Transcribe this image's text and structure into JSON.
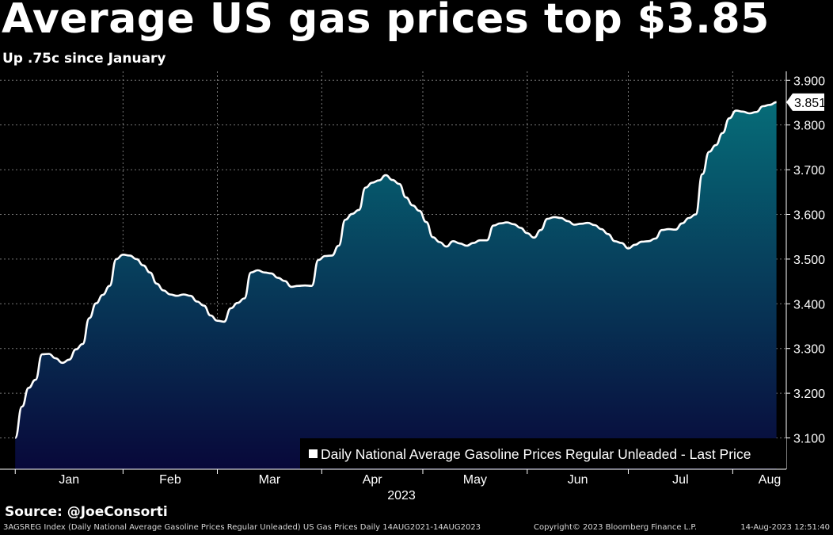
{
  "header": {
    "title": "Average US gas prices top $3.85",
    "subtitle": "Up .75c since January"
  },
  "source_label": "Source: @JoeConsorti",
  "footer": {
    "left": "3AGSREG Index (Daily National Average Gasoline Prices Regular Unleaded) US Gas Prices  Daily 14AUG2021-14AUG2023",
    "center": "Copyright© 2023 Bloomberg Finance L.P.",
    "right": "14-Aug-2023 12:51:40"
  },
  "colors": {
    "background": "#000000",
    "line": "#ffffff",
    "fill_top": "#066c78",
    "fill_bottom": "#08083a",
    "grid": "#777777"
  },
  "chart_data": {
    "type": "area",
    "legend": "Daily National Average Gasoline Prices Regular Unleaded - Last Price",
    "legend_position": "bottom-right",
    "year_label": "2023",
    "month_labels": [
      "Jan",
      "Feb",
      "Mar",
      "Apr",
      "May",
      "Jun",
      "Jul",
      "Aug"
    ],
    "y_ticks": [
      "3.100",
      "3.200",
      "3.300",
      "3.400",
      "3.500",
      "3.600",
      "3.700",
      "3.800",
      "3.900"
    ],
    "ylim": [
      3.03,
      3.92
    ],
    "grid": true,
    "last_price_label": "3.851",
    "last_value": 3.851,
    "x": [
      "2022-12-31",
      "2023-01-02",
      "2023-01-04",
      "2023-01-06",
      "2023-01-08",
      "2023-01-10",
      "2023-01-12",
      "2023-01-14",
      "2023-01-16",
      "2023-01-18",
      "2023-01-20",
      "2023-01-22",
      "2023-01-24",
      "2023-01-26",
      "2023-01-28",
      "2023-01-30",
      "2023-02-01",
      "2023-02-03",
      "2023-02-05",
      "2023-02-07",
      "2023-02-09",
      "2023-02-11",
      "2023-02-13",
      "2023-02-15",
      "2023-02-17",
      "2023-02-19",
      "2023-02-21",
      "2023-02-23",
      "2023-02-25",
      "2023-02-27",
      "2023-03-01",
      "2023-03-03",
      "2023-03-05",
      "2023-03-07",
      "2023-03-09",
      "2023-03-11",
      "2023-03-13",
      "2023-03-15",
      "2023-03-17",
      "2023-03-19",
      "2023-03-21",
      "2023-03-23",
      "2023-03-25",
      "2023-03-27",
      "2023-03-29",
      "2023-03-31",
      "2023-04-02",
      "2023-04-04",
      "2023-04-06",
      "2023-04-08",
      "2023-04-10",
      "2023-04-12",
      "2023-04-14",
      "2023-04-16",
      "2023-04-18",
      "2023-04-20",
      "2023-04-22",
      "2023-04-24",
      "2023-04-26",
      "2023-04-28",
      "2023-04-30",
      "2023-05-02",
      "2023-05-04",
      "2023-05-06",
      "2023-05-08",
      "2023-05-10",
      "2023-05-12",
      "2023-05-14",
      "2023-05-16",
      "2023-05-18",
      "2023-05-20",
      "2023-05-22",
      "2023-05-24",
      "2023-05-26",
      "2023-05-28",
      "2023-05-30",
      "2023-06-01",
      "2023-06-03",
      "2023-06-05",
      "2023-06-07",
      "2023-06-09",
      "2023-06-11",
      "2023-06-13",
      "2023-06-15",
      "2023-06-17",
      "2023-06-19",
      "2023-06-21",
      "2023-06-23",
      "2023-06-25",
      "2023-06-27",
      "2023-06-29",
      "2023-07-01",
      "2023-07-03",
      "2023-07-05",
      "2023-07-07",
      "2023-07-09",
      "2023-07-11",
      "2023-07-13",
      "2023-07-15",
      "2023-07-17",
      "2023-07-19",
      "2023-07-21",
      "2023-07-23",
      "2023-07-25",
      "2023-07-27",
      "2023-07-29",
      "2023-07-31",
      "2023-08-02",
      "2023-08-04",
      "2023-08-06",
      "2023-08-08",
      "2023-08-10",
      "2023-08-12",
      "2023-08-14"
    ],
    "values": [
      3.1,
      3.17,
      3.212,
      3.23,
      3.287,
      3.288,
      3.278,
      3.268,
      3.275,
      3.298,
      3.31,
      3.368,
      3.401,
      3.42,
      3.44,
      3.5,
      3.51,
      3.508,
      3.5,
      3.486,
      3.47,
      3.445,
      3.43,
      3.421,
      3.418,
      3.421,
      3.418,
      3.405,
      3.396,
      3.374,
      3.362,
      3.36,
      3.39,
      3.402,
      3.412,
      3.47,
      3.475,
      3.47,
      3.468,
      3.458,
      3.451,
      3.438,
      3.44,
      3.441,
      3.44,
      3.498,
      3.507,
      3.508,
      3.53,
      3.588,
      3.601,
      3.61,
      3.66,
      3.671,
      3.676,
      3.688,
      3.677,
      3.668,
      3.638,
      3.62,
      3.608,
      3.583,
      3.549,
      3.538,
      3.528,
      3.54,
      3.535,
      3.53,
      3.536,
      3.542,
      3.542,
      3.575,
      3.58,
      3.582,
      3.578,
      3.57,
      3.558,
      3.548,
      3.565,
      3.59,
      3.594,
      3.592,
      3.585,
      3.577,
      3.579,
      3.581,
      3.576,
      3.567,
      3.556,
      3.54,
      3.536,
      3.524,
      3.532,
      3.539,
      3.54,
      3.546,
      3.565,
      3.567,
      3.566,
      3.58,
      3.592,
      3.6,
      3.69,
      3.74,
      3.755,
      3.782,
      3.815,
      3.832,
      3.83,
      3.826,
      3.829,
      3.842,
      3.845,
      3.851
    ]
  }
}
